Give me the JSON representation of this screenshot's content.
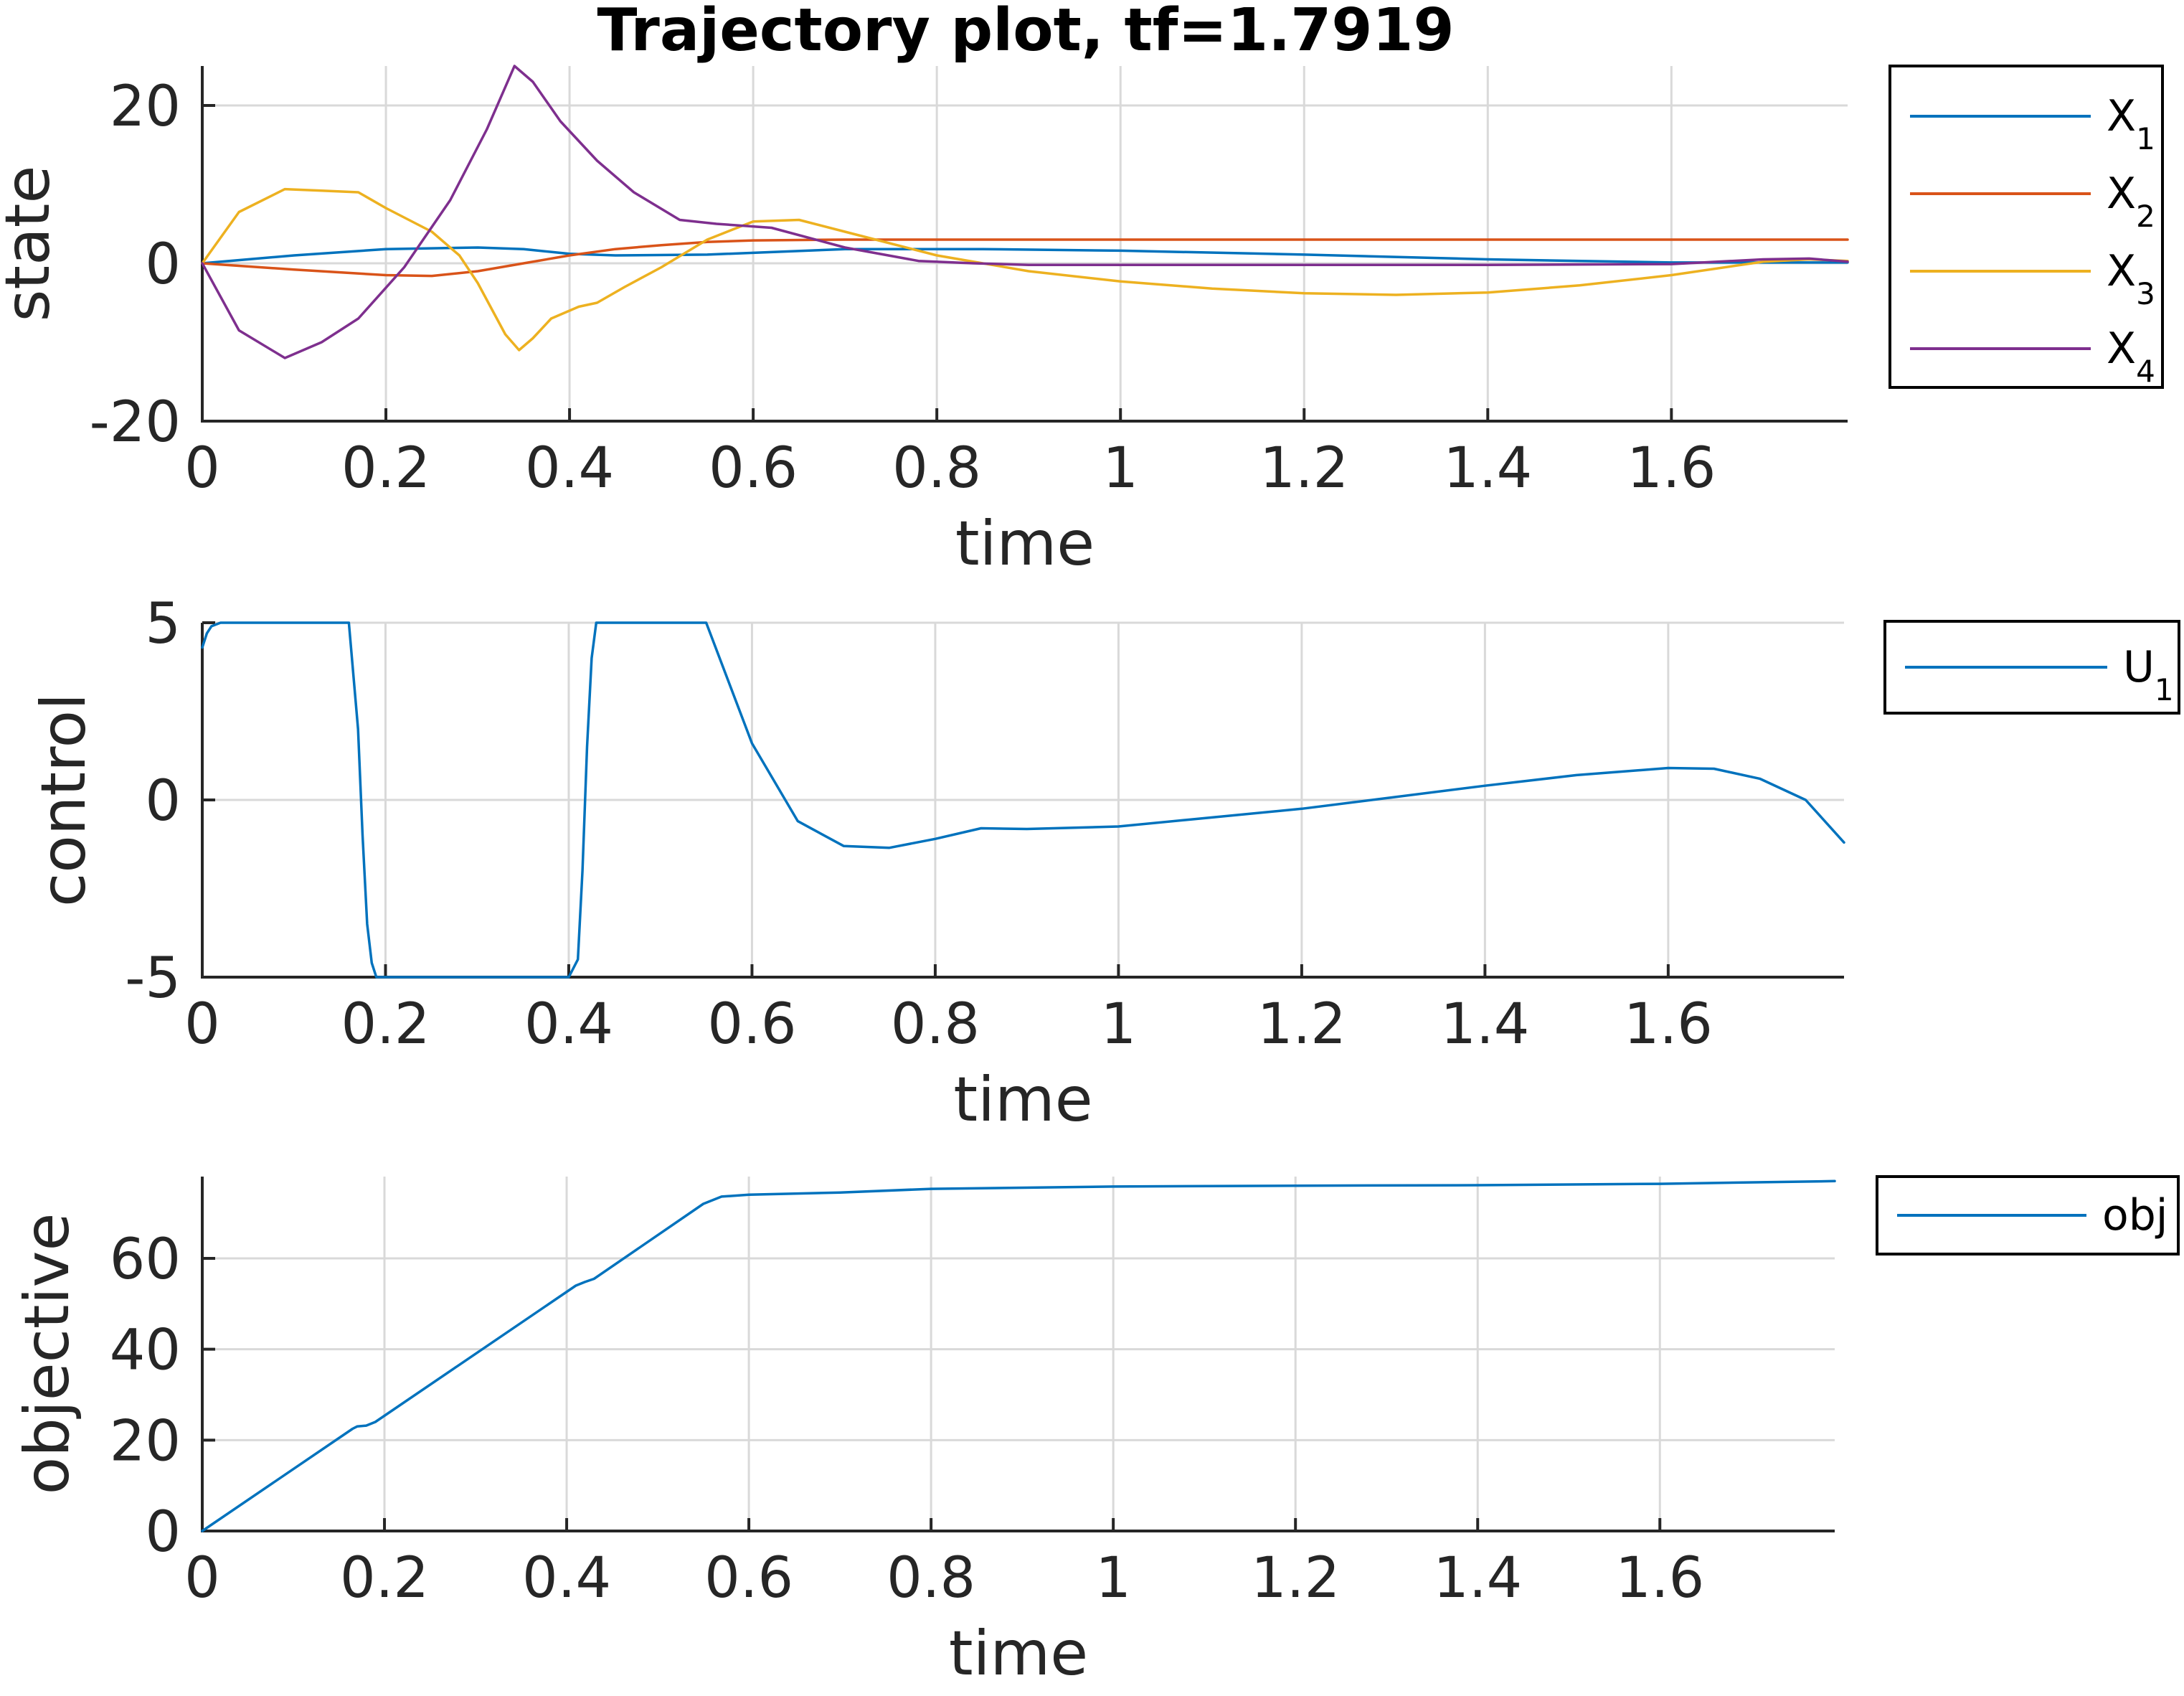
{
  "title": "Trajectory plot, tf=1.7919",
  "colors": {
    "blue": "#0072BD",
    "orange": "#D95319",
    "yellow": "#EDB120",
    "purple": "#7E2F8E"
  },
  "chart_data": [
    {
      "type": "line",
      "xlabel": "time",
      "ylabel": "state",
      "xlim": [
        0,
        1.7919
      ],
      "ylim": [
        -20,
        25
      ],
      "xticks": [
        "0",
        "0.2",
        "0.4",
        "0.6",
        "0.8",
        "1",
        "1.2",
        "1.4",
        "1.6"
      ],
      "yticks": [
        "-20",
        "0",
        "20"
      ],
      "grid": true,
      "legend": "outside-right",
      "series": [
        {
          "name": "X",
          "sub": "1",
          "color": "#0072BD",
          "x": [
            0,
            0.1,
            0.2,
            0.3,
            0.35,
            0.4,
            0.45,
            0.55,
            0.7,
            0.85,
            1.0,
            1.2,
            1.4,
            1.6,
            1.7,
            1.7919
          ],
          "y": [
            0,
            1.0,
            1.8,
            2.0,
            1.8,
            1.2,
            1.0,
            1.1,
            1.8,
            1.8,
            1.6,
            1.1,
            0.5,
            0.1,
            0.1,
            0.1
          ]
        },
        {
          "name": "X",
          "sub": "2",
          "color": "#D95319",
          "x": [
            0,
            0.1,
            0.2,
            0.25,
            0.3,
            0.35,
            0.4,
            0.45,
            0.5,
            0.55,
            0.6,
            0.7,
            0.8,
            1.0,
            1.2,
            1.4,
            1.6,
            1.7919
          ],
          "y": [
            0,
            -0.8,
            -1.5,
            -1.6,
            -1.0,
            0.0,
            1.0,
            1.8,
            2.3,
            2.7,
            2.9,
            3.0,
            3.0,
            3.0,
            3.0,
            3.0,
            3.0,
            3.0
          ]
        },
        {
          "name": "X",
          "sub": "3",
          "color": "#EDB120",
          "x": [
            0,
            0.04,
            0.09,
            0.13,
            0.17,
            0.2,
            0.25,
            0.28,
            0.3,
            0.33,
            0.345,
            0.36,
            0.38,
            0.41,
            0.43,
            0.46,
            0.5,
            0.55,
            0.6,
            0.65,
            0.7,
            0.8,
            0.9,
            1.0,
            1.1,
            1.2,
            1.3,
            1.4,
            1.5,
            1.6,
            1.7,
            1.75,
            1.7919
          ],
          "y": [
            0,
            6.5,
            9.4,
            9.2,
            9.0,
            7.0,
            4.0,
            1.0,
            -2.5,
            -9.0,
            -11.0,
            -9.5,
            -7.0,
            -5.5,
            -5.0,
            -3.0,
            -0.5,
            3.0,
            5.3,
            5.5,
            4.0,
            1.0,
            -1.0,
            -2.3,
            -3.2,
            -3.8,
            -4.0,
            -3.7,
            -2.8,
            -1.5,
            0.2,
            0.5,
            0.3
          ]
        },
        {
          "name": "X",
          "sub": "4",
          "color": "#7E2F8E",
          "x": [
            0,
            0.04,
            0.09,
            0.13,
            0.17,
            0.22,
            0.27,
            0.31,
            0.34,
            0.36,
            0.39,
            0.43,
            0.47,
            0.52,
            0.56,
            0.62,
            0.7,
            0.78,
            0.84,
            0.9,
            1.0,
            1.2,
            1.4,
            1.6,
            1.7,
            1.75,
            1.7919
          ],
          "y": [
            0,
            -8.5,
            -12.0,
            -10.0,
            -7.0,
            -0.5,
            8.0,
            17.0,
            25.0,
            23.0,
            18.0,
            13.0,
            9.0,
            5.5,
            5.0,
            4.5,
            2.0,
            0.3,
            0.0,
            -0.2,
            -0.2,
            -0.2,
            -0.2,
            -0.1,
            0.5,
            0.6,
            0.2
          ]
        }
      ]
    },
    {
      "type": "line",
      "xlabel": "time",
      "ylabel": "control",
      "xlim": [
        0,
        1.7919
      ],
      "ylim": [
        -5,
        5
      ],
      "xticks": [
        "0",
        "0.2",
        "0.4",
        "0.6",
        "0.8",
        "1",
        "1.2",
        "1.4",
        "1.6"
      ],
      "yticks": [
        "-5",
        "0",
        "5"
      ],
      "grid": true,
      "legend": "outside-right",
      "series": [
        {
          "name": "U",
          "sub": "1",
          "color": "#0072BD",
          "x": [
            0,
            0.005,
            0.01,
            0.02,
            0.05,
            0.1,
            0.16,
            0.17,
            0.175,
            0.18,
            0.185,
            0.19,
            0.2,
            0.3,
            0.4,
            0.41,
            0.415,
            0.42,
            0.425,
            0.43,
            0.45,
            0.5,
            0.55,
            0.6,
            0.65,
            0.7,
            0.75,
            0.8,
            0.85,
            0.9,
            1.0,
            1.2,
            1.4,
            1.5,
            1.6,
            1.65,
            1.7,
            1.75,
            1.7919
          ],
          "y": [
            4.3,
            4.7,
            4.9,
            5.0,
            5.0,
            5.0,
            5.0,
            2.0,
            -1.0,
            -3.5,
            -4.6,
            -5.0,
            -5.0,
            -5.0,
            -5.0,
            -4.5,
            -2.0,
            1.5,
            4.0,
            5.0,
            5.0,
            5.0,
            5.0,
            1.6,
            -0.6,
            -1.3,
            -1.35,
            -1.1,
            -0.8,
            -0.82,
            -0.75,
            -0.25,
            0.4,
            0.7,
            0.9,
            0.88,
            0.6,
            0.0,
            -1.2
          ]
        }
      ]
    },
    {
      "type": "line",
      "xlabel": "time",
      "ylabel": "objective",
      "xlim": [
        0,
        1.7919
      ],
      "ylim": [
        0,
        78
      ],
      "xticks": [
        "0",
        "0.2",
        "0.4",
        "0.6",
        "0.8",
        "1",
        "1.2",
        "1.4",
        "1.6"
      ],
      "yticks": [
        "0",
        "20",
        "40",
        "60"
      ],
      "grid": true,
      "legend": "outside-right",
      "series": [
        {
          "name": "obj",
          "sub": "",
          "color": "#0072BD",
          "x": [
            0,
            0.165,
            0.17,
            0.18,
            0.19,
            0.41,
            0.42,
            0.43,
            0.55,
            0.57,
            0.6,
            0.7,
            0.8,
            1.0,
            1.2,
            1.4,
            1.6,
            1.7919
          ],
          "y": [
            0,
            22.5,
            23.0,
            23.2,
            24.0,
            54.0,
            54.8,
            55.5,
            72.0,
            73.6,
            74.0,
            74.5,
            75.3,
            75.8,
            76.0,
            76.1,
            76.4,
            77.0
          ]
        }
      ]
    }
  ]
}
